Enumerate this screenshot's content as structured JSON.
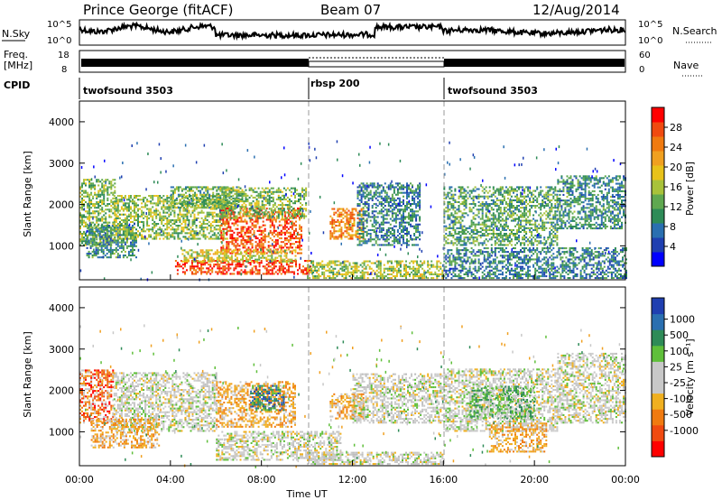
{
  "header": {
    "station": "Prince George (fitACF)",
    "beam": "Beam 07",
    "date": "12/Aug/2014"
  },
  "top_panels": {
    "nsky_label": "N.Sky",
    "nsky_ticks": [
      "10^5",
      "10^0"
    ],
    "nsearch_label": "N.Search",
    "nsearch_ticks": [
      "10^5",
      "10^0"
    ],
    "freq_label": "Freq.",
    "freq_unit": "[MHz]",
    "freq_ticks": [
      "18",
      "8"
    ],
    "nave_label": "Nave",
    "nave_ticks": [
      "60",
      "0"
    ],
    "cpid_label": "CPID",
    "cpid_segments": [
      {
        "name": "twofsound 3503",
        "start_hour": 0,
        "end_hour": 10
      },
      {
        "name": "rbsp 200",
        "start_hour": 10,
        "end_hour": 16
      },
      {
        "name": "twofsound 3503",
        "start_hour": 16,
        "end_hour": 24
      }
    ]
  },
  "chart_data": [
    {
      "type": "heatmap",
      "name": "power",
      "ylabel": "Slant Range [km]",
      "xlabel": "Time UT",
      "xlim": [
        0,
        24
      ],
      "ylim": [
        180,
        4500
      ],
      "xticks": [
        "00:00",
        "04:00",
        "08:00",
        "12:00",
        "16:00",
        "20:00",
        "00:00"
      ],
      "yticks": [
        1000,
        2000,
        3000,
        4000
      ],
      "colorbar": {
        "label": "Power [dB]",
        "ticks": [
          4,
          8,
          12,
          16,
          20,
          24,
          28
        ],
        "range": [
          0,
          32
        ],
        "colors": [
          "#0000ff",
          "#1f3fb0",
          "#2a6fb0",
          "#2e8b57",
          "#5fa850",
          "#a8c23a",
          "#e8c21a",
          "#f0a020",
          "#f07a10",
          "#f04a10",
          "#ff0000"
        ]
      },
      "regions": [
        {
          "t": [
            0.0,
            1.6
          ],
          "r": [
            1000,
            2600
          ],
          "level": 14
        },
        {
          "t": [
            0.3,
            2.5
          ],
          "r": [
            700,
            1500
          ],
          "level": 10
        },
        {
          "t": [
            1.5,
            6.5
          ],
          "r": [
            1150,
            2200
          ],
          "level": 15
        },
        {
          "t": [
            4.0,
            7.0
          ],
          "r": [
            1900,
            2400
          ],
          "level": 13
        },
        {
          "t": [
            6.2,
            9.8
          ],
          "r": [
            800,
            1900
          ],
          "level": 27
        },
        {
          "t": [
            6.0,
            10.0
          ],
          "r": [
            1650,
            2400
          ],
          "level": 14
        },
        {
          "t": [
            4.2,
            10.2
          ],
          "r": [
            300,
            650
          ],
          "level": 28
        },
        {
          "t": [
            4.5,
            9.5
          ],
          "r": [
            600,
            900
          ],
          "level": 18
        },
        {
          "t": [
            11.0,
            12.5
          ],
          "r": [
            1150,
            1900
          ],
          "level": 24
        },
        {
          "t": [
            12.2,
            15.0
          ],
          "r": [
            1000,
            2500
          ],
          "level": 9
        },
        {
          "t": [
            10.0,
            16.0
          ],
          "r": [
            200,
            650
          ],
          "level": 16
        },
        {
          "t": [
            16.0,
            24.0
          ],
          "r": [
            200,
            950
          ],
          "level": 9
        },
        {
          "t": [
            16.0,
            21.0
          ],
          "r": [
            1000,
            2400
          ],
          "level": 12
        },
        {
          "t": [
            21.0,
            24.0
          ],
          "r": [
            1400,
            2700
          ],
          "level": 10
        }
      ]
    },
    {
      "type": "heatmap",
      "name": "velocity",
      "ylabel": "Slant Range [km]",
      "xlabel": "Time UT",
      "xlim": [
        0,
        24
      ],
      "ylim": [
        180,
        4500
      ],
      "xticks": [
        "00:00",
        "04:00",
        "08:00",
        "12:00",
        "16:00",
        "20:00",
        "00:00"
      ],
      "yticks": [
        1000,
        2000,
        3000,
        4000
      ],
      "colorbar": {
        "label": "Velocity [m s⁻¹]",
        "ticks": [
          "1000",
          "500",
          "100",
          "25",
          "-25",
          "-100",
          "-500",
          "-1000"
        ],
        "colors": [
          "#1f3fb0",
          "#2a6fb0",
          "#2e8b57",
          "#5fbf3a",
          "#c8c8c8",
          "#c8c8c8",
          "#f0b020",
          "#f07a10",
          "#f04a10",
          "#ff0000"
        ]
      },
      "regions": [
        {
          "t": [
            0.0,
            1.5
          ],
          "r": [
            1200,
            2500
          ],
          "level": "orange-red"
        },
        {
          "t": [
            1.5,
            6.0
          ],
          "r": [
            1000,
            2400
          ],
          "level": "gray"
        },
        {
          "t": [
            0.5,
            3.5
          ],
          "r": [
            600,
            1300
          ],
          "level": "orange"
        },
        {
          "t": [
            6.0,
            9.5
          ],
          "r": [
            1100,
            2200
          ],
          "level": "orange"
        },
        {
          "t": [
            7.5,
            9.0
          ],
          "r": [
            1500,
            2100
          ],
          "level": "blue-green"
        },
        {
          "t": [
            6.0,
            11.5
          ],
          "r": [
            300,
            1000
          ],
          "level": "gray"
        },
        {
          "t": [
            11.0,
            12.5
          ],
          "r": [
            1300,
            1900
          ],
          "level": "orange"
        },
        {
          "t": [
            12.0,
            16.0
          ],
          "r": [
            1200,
            2400
          ],
          "level": "gray"
        },
        {
          "t": [
            10.0,
            16.0
          ],
          "r": [
            200,
            500
          ],
          "level": "gray"
        },
        {
          "t": [
            16.0,
            21.0
          ],
          "r": [
            1000,
            2500
          ],
          "level": "gray"
        },
        {
          "t": [
            17.0,
            20.0
          ],
          "r": [
            1300,
            2100
          ],
          "level": "green"
        },
        {
          "t": [
            18.0,
            20.5
          ],
          "r": [
            500,
            1200
          ],
          "level": "orange"
        },
        {
          "t": [
            21.0,
            24.0
          ],
          "r": [
            1200,
            2900
          ],
          "level": "gray"
        }
      ]
    }
  ]
}
